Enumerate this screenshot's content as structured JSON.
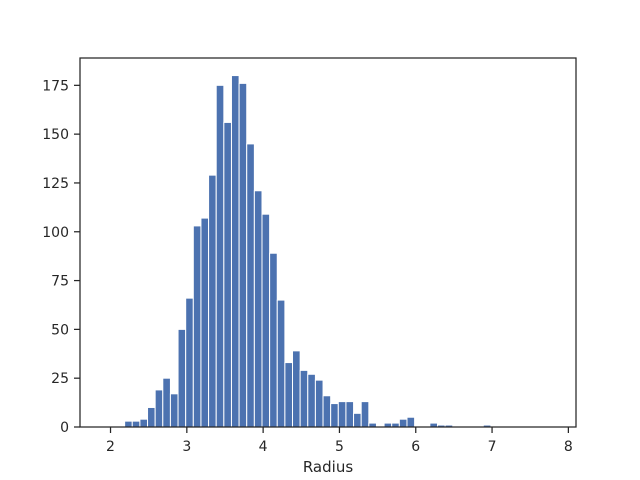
{
  "chart_data": {
    "type": "bar",
    "subtype": "histogram",
    "title": "",
    "xlabel": "Radius",
    "ylabel": "",
    "xlim": [
      1.6,
      8.1
    ],
    "ylim": [
      0,
      189
    ],
    "xticks": [
      2,
      3,
      4,
      5,
      6,
      7,
      8
    ],
    "yticks": [
      0,
      25,
      50,
      75,
      100,
      125,
      150,
      175
    ],
    "bar_color": "#4c72b0",
    "grid": false,
    "legend": "none",
    "bin_start": 1.985,
    "bin_width": 0.1,
    "values": [
      0,
      0,
      3,
      3,
      4,
      10,
      19,
      25,
      17,
      50,
      66,
      103,
      107,
      129,
      175,
      156,
      180,
      176,
      145,
      121,
      109,
      89,
      65,
      33,
      39,
      29,
      27,
      24,
      16,
      12,
      13,
      13,
      7,
      13,
      2,
      0,
      2,
      2,
      4,
      5,
      0,
      0,
      2,
      1,
      1,
      0,
      0,
      0,
      0,
      1
    ]
  }
}
